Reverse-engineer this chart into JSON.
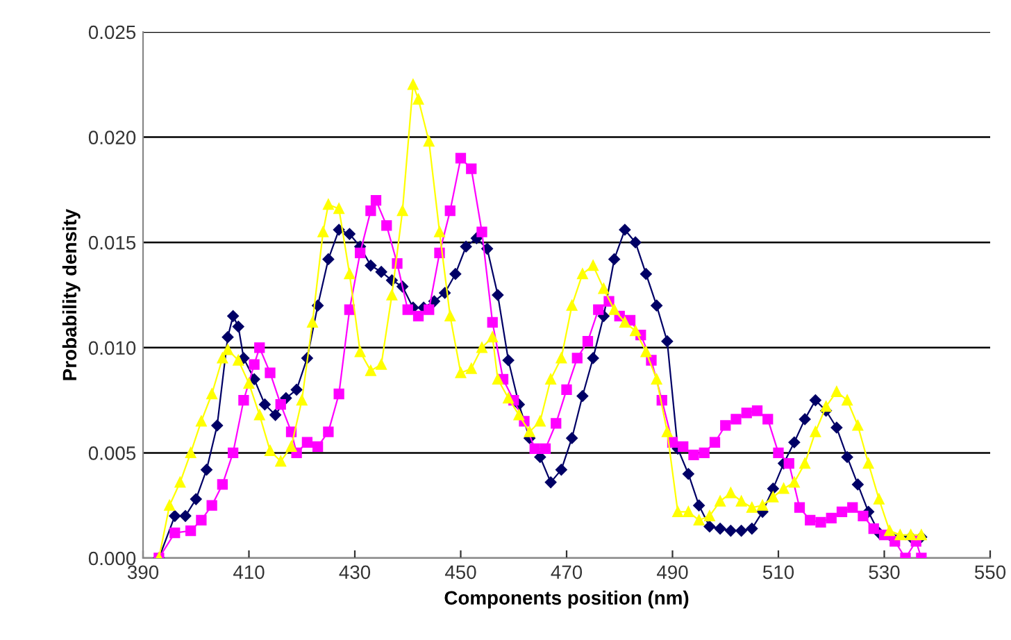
{
  "chart_data": {
    "type": "line",
    "xlabel": "Components position (nm)",
    "ylabel": "Probability density",
    "xlim": [
      390,
      550
    ],
    "xticks": [
      390,
      410,
      430,
      450,
      470,
      490,
      510,
      530,
      550
    ],
    "ylim": [
      0,
      0.025
    ],
    "yticks": [
      {
        "value": 0,
        "label": "0.000"
      },
      {
        "value": 0.005,
        "label": "0.005"
      },
      {
        "value": 0.01,
        "label": "0.010"
      },
      {
        "value": 0.015,
        "label": "0.015"
      },
      {
        "value": 0.02,
        "label": "0.020"
      },
      {
        "value": 0.025,
        "label": "0.025"
      }
    ],
    "grid": "y",
    "legend": false,
    "series": [
      {
        "color": "#000066",
        "marker": "diamond",
        "x": [
          393,
          396,
          398,
          400,
          402,
          404,
          406,
          407,
          408,
          409,
          411,
          413,
          415,
          417,
          419,
          421,
          423,
          425,
          427,
          429,
          431,
          433,
          435,
          437,
          439,
          441,
          443,
          445,
          447,
          449,
          451,
          453,
          455,
          457,
          459,
          461,
          463,
          465,
          467,
          469,
          471,
          473,
          475,
          477,
          479,
          481,
          483,
          485,
          487,
          489,
          491,
          493,
          495,
          497,
          499,
          501,
          503,
          505,
          507,
          509,
          511,
          513,
          515,
          517,
          519,
          521,
          523,
          525,
          527,
          529,
          531,
          535,
          537
        ],
        "values": [
          0,
          0.002,
          0.002,
          0.0028,
          0.0042,
          0.0063,
          0.0105,
          0.0115,
          0.011,
          0.0095,
          0.0085,
          0.0073,
          0.0068,
          0.0076,
          0.008,
          0.0095,
          0.012,
          0.0142,
          0.0156,
          0.0154,
          0.0148,
          0.0139,
          0.0136,
          0.0132,
          0.0129,
          0.0119,
          0.0119,
          0.0122,
          0.0126,
          0.0135,
          0.0148,
          0.0152,
          0.0147,
          0.0125,
          0.0094,
          0.0073,
          0.0057,
          0.0048,
          0.0036,
          0.0042,
          0.0057,
          0.0077,
          0.0095,
          0.0115,
          0.0142,
          0.0156,
          0.015,
          0.0135,
          0.012,
          0.0103,
          0.0052,
          0.004,
          0.0025,
          0.0015,
          0.0014,
          0.0013,
          0.0013,
          0.0014,
          0.0022,
          0.0033,
          0.0045,
          0.0055,
          0.0066,
          0.0075,
          0.007,
          0.0062,
          0.0048,
          0.0035,
          0.0022,
          0.0012,
          0.0011,
          0.001,
          0.001
        ]
      },
      {
        "color": "#ff00ff",
        "marker": "square",
        "x": [
          393,
          396,
          399,
          401,
          403,
          405,
          407,
          409,
          411,
          412,
          414,
          416,
          418,
          419,
          421,
          423,
          425,
          427,
          429,
          431,
          433,
          434,
          436,
          438,
          440,
          442,
          444,
          446,
          448,
          450,
          452,
          454,
          456,
          458,
          460,
          462,
          464,
          466,
          468,
          470,
          472,
          474,
          476,
          478,
          480,
          482,
          484,
          486,
          488,
          490,
          492,
          494,
          496,
          498,
          500,
          502,
          504,
          506,
          508,
          510,
          512,
          514,
          516,
          518,
          520,
          522,
          524,
          526,
          528,
          530,
          532,
          534,
          536,
          537
        ],
        "values": [
          0,
          0.0012,
          0.0013,
          0.0018,
          0.0025,
          0.0035,
          0.005,
          0.0075,
          0.0092,
          0.01,
          0.0088,
          0.0073,
          0.006,
          0.005,
          0.0055,
          0.0053,
          0.006,
          0.0078,
          0.0118,
          0.0145,
          0.0165,
          0.017,
          0.0158,
          0.014,
          0.0118,
          0.0115,
          0.0118,
          0.0145,
          0.0165,
          0.019,
          0.0185,
          0.0155,
          0.0112,
          0.0085,
          0.0075,
          0.0065,
          0.0052,
          0.0052,
          0.0064,
          0.008,
          0.0095,
          0.0103,
          0.0118,
          0.0122,
          0.0115,
          0.0113,
          0.0106,
          0.0094,
          0.0075,
          0.0055,
          0.0053,
          0.0049,
          0.005,
          0.0055,
          0.0063,
          0.0066,
          0.0069,
          0.007,
          0.0066,
          0.005,
          0.0045,
          0.0024,
          0.0018,
          0.0017,
          0.0019,
          0.0022,
          0.0024,
          0.002,
          0.0014,
          0.0011,
          0.0008,
          0,
          0.0008,
          0
        ]
      },
      {
        "color": "#ffff00",
        "marker": "triangle",
        "x": [
          393,
          395,
          397,
          399,
          401,
          403,
          405,
          406,
          408,
          410,
          412,
          414,
          416,
          418,
          420,
          422,
          424,
          425,
          427,
          429,
          431,
          433,
          435,
          437,
          439,
          441,
          442,
          444,
          446,
          448,
          450,
          452,
          454,
          456,
          457,
          459,
          461,
          463,
          465,
          467,
          469,
          471,
          473,
          475,
          477,
          479,
          481,
          483,
          485,
          487,
          489,
          491,
          493,
          495,
          497,
          499,
          501,
          503,
          505,
          507,
          509,
          511,
          513,
          515,
          517,
          519,
          521,
          523,
          525,
          527,
          529,
          531,
          533,
          535,
          537
        ],
        "values": [
          0,
          0.0025,
          0.0036,
          0.005,
          0.0065,
          0.0078,
          0.0095,
          0.0099,
          0.0094,
          0.0083,
          0.0068,
          0.0051,
          0.0046,
          0.0053,
          0.0075,
          0.0112,
          0.0155,
          0.0168,
          0.0166,
          0.0135,
          0.0098,
          0.0089,
          0.0092,
          0.0125,
          0.0165,
          0.0225,
          0.0218,
          0.0198,
          0.0155,
          0.0115,
          0.0088,
          0.009,
          0.01,
          0.0105,
          0.0085,
          0.0076,
          0.0068,
          0.006,
          0.0065,
          0.0085,
          0.0095,
          0.012,
          0.0135,
          0.0139,
          0.0128,
          0.0118,
          0.0112,
          0.0108,
          0.0098,
          0.0085,
          0.006,
          0.0022,
          0.0022,
          0.0018,
          0.002,
          0.0027,
          0.0031,
          0.0027,
          0.0024,
          0.0025,
          0.0029,
          0.0033,
          0.0036,
          0.0045,
          0.006,
          0.0072,
          0.0079,
          0.0075,
          0.0063,
          0.0045,
          0.0028,
          0.0013,
          0.0011,
          0.0011,
          0.0011
        ]
      }
    ]
  }
}
